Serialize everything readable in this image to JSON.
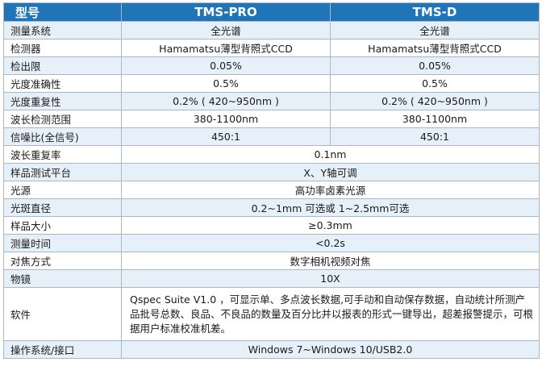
{
  "header": {
    "label": "型号",
    "col1": "TMS-PRO",
    "col2": "TMS-D"
  },
  "rows": [
    {
      "label": "测量系统",
      "pro": "全光谱",
      "d": "全光谱"
    },
    {
      "label": "检测器",
      "pro": "Hamamatsu薄型背照式CCD",
      "d": "Hamamatsu薄型背照式CCD"
    },
    {
      "label": "检出限",
      "pro": "0.05%",
      "d": "0.05%"
    },
    {
      "label": "光度准确性",
      "pro": "0.5%",
      "d": "0.5%"
    },
    {
      "label": "光度重复性",
      "pro": "0.2% ( 420~950nm )",
      "d": "0.2% ( 420~950nm )"
    },
    {
      "label": "波长检测范围",
      "pro": "380-1100nm",
      "d": "380-1100nm"
    },
    {
      "label": "信噪比(全信号)",
      "pro": "450:1",
      "d": "450:1"
    }
  ],
  "shared_rows": [
    {
      "label": "波长重复率",
      "value": "0.1nm"
    },
    {
      "label": "样品测试平台",
      "value": "X、Y轴可调"
    },
    {
      "label": "光源",
      "value": "高功率卤素光源"
    },
    {
      "label": "光斑直径",
      "value": "0.2~1mm 可选或 1~2.5mm可选"
    },
    {
      "label": "样品大小",
      "value": "≥0.3mm"
    },
    {
      "label": "测量时间",
      "value": "<0.2s"
    },
    {
      "label": "对焦方式",
      "value": "数字相机视频对焦"
    },
    {
      "label": "物镜",
      "value": "10X"
    }
  ],
  "software": {
    "label": "软件",
    "value": "Qspec Suite V1.0 ，可显示单、多点波长数据,可手动和自动保存数据，自动统计所测产品批号总数、良品、不良品的数量及百分比并以报表的形式一键导出，超差报警提示，可根据用户标准校准机差。"
  },
  "os": {
    "label": "操作系统/接口",
    "value": "Windows 7~Windows 10/USB2.0"
  },
  "colors": {
    "header_bg": "#1f75b8",
    "alt_row_bg": "#e6f0f9",
    "border": "#a9b7c6"
  }
}
